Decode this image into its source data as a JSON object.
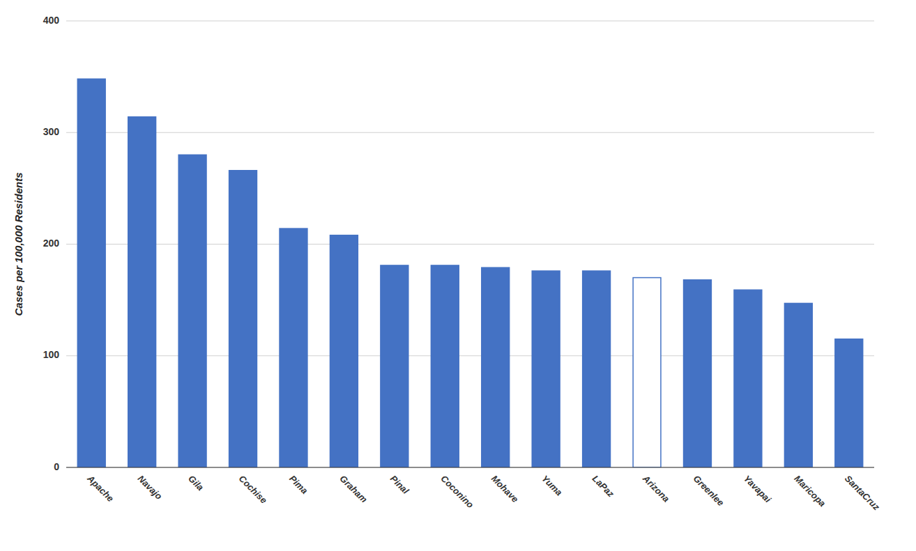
{
  "chart_data": {
    "type": "bar",
    "ylabel": "Cases per 100,000 Residents",
    "categories": [
      "Apache",
      "Navajo",
      "Gila",
      "Cochise",
      "Pima",
      "Graham",
      "Pinal",
      "Coconino",
      "Mohave",
      "Yuma",
      "LaPaz",
      "Arizona",
      "Greenlee",
      "Yavapai",
      "Maricopa",
      "SantaCruz"
    ],
    "values": [
      348,
      314,
      280,
      266,
      214,
      208,
      181,
      181,
      179,
      176,
      176,
      170,
      168,
      159,
      147,
      115
    ],
    "colors": [
      "#4472C4",
      "#4472C4",
      "#4472C4",
      "#4472C4",
      "#4472C4",
      "#4472C4",
      "#4472C4",
      "#4472C4",
      "#4472C4",
      "#4472C4",
      "#4472C4",
      "#FFFFFF",
      "#4472C4",
      "#4472C4",
      "#4472C4",
      "#4472C4"
    ],
    "color": "#4472C4",
    "ylim": [
      0,
      400
    ],
    "yticks": [
      0,
      100,
      200,
      300,
      400
    ],
    "grid": true
  }
}
